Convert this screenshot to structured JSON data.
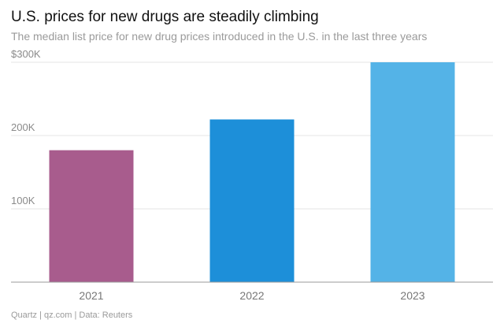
{
  "title": "U.S. prices for new drugs are steadily climbing",
  "subtitle": "The median list price for new drug prices introduced in the U.S. in the last three years",
  "source": "Quartz | qz.com | Data: Reuters",
  "colors": {
    "bars": [
      "#a85c8d",
      "#1d8fd9",
      "#54b3e7"
    ],
    "grid": "#e6e6e6",
    "axis": "#9a9a9a"
  },
  "chart_data": {
    "type": "bar",
    "categories": [
      "2021",
      "2022",
      "2023"
    ],
    "values": [
      180000,
      222000,
      300000
    ],
    "ylim": [
      0,
      300000
    ],
    "yticks": [
      100000,
      200000,
      300000
    ],
    "ytick_labels": [
      "100K",
      "200K",
      "$300K"
    ],
    "xlabel": "",
    "ylabel": "",
    "grid": true,
    "legend": "none"
  }
}
